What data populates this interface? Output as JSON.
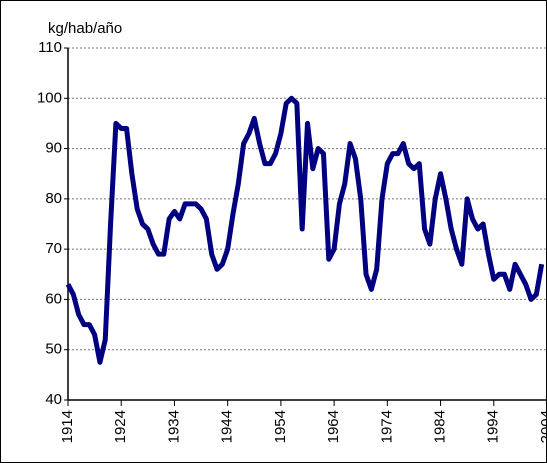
{
  "chart_data": {
    "type": "line",
    "y_label": "kg/hab/año",
    "x": [
      1914,
      1915,
      1916,
      1917,
      1918,
      1919,
      1920,
      1921,
      1922,
      1923,
      1924,
      1925,
      1926,
      1927,
      1928,
      1929,
      1930,
      1931,
      1932,
      1933,
      1934,
      1935,
      1936,
      1937,
      1938,
      1939,
      1940,
      1941,
      1942,
      1943,
      1944,
      1945,
      1946,
      1947,
      1948,
      1949,
      1950,
      1951,
      1952,
      1953,
      1954,
      1955,
      1956,
      1957,
      1958,
      1959,
      1960,
      1961,
      1962,
      1963,
      1964,
      1965,
      1966,
      1967,
      1968,
      1969,
      1970,
      1971,
      1972,
      1973,
      1974,
      1975,
      1976,
      1977,
      1978,
      1979,
      1980,
      1981,
      1982,
      1983,
      1984,
      1985,
      1986,
      1987,
      1988,
      1989,
      1990,
      1991,
      1992,
      1993,
      1994,
      1995,
      1996,
      1997,
      1998,
      1999,
      2000,
      2001,
      2002,
      2003
    ],
    "series": [
      {
        "color": "#000080",
        "values": [
          63,
          61,
          57,
          55,
          55,
          53,
          47.5,
          52,
          75,
          95,
          94,
          94,
          85,
          78,
          75,
          74,
          71,
          69,
          69,
          76,
          77.5,
          76,
          79,
          79,
          79,
          78,
          76,
          69,
          66,
          67,
          70,
          77,
          83,
          91,
          93,
          96,
          91,
          87,
          87,
          89,
          93,
          99,
          100,
          99,
          74,
          95,
          86,
          90,
          89,
          68,
          70,
          79,
          83,
          91,
          88,
          80,
          65,
          62,
          66,
          80,
          87,
          89,
          89,
          91,
          87,
          86,
          87,
          74,
          71,
          80,
          85,
          80,
          74,
          70,
          67,
          80,
          76,
          74,
          75,
          69,
          64,
          65,
          65,
          62,
          67,
          65,
          63,
          60,
          61,
          67
        ]
      }
    ],
    "xlim": [
      1914,
      2004
    ],
    "xticks": [
      1914,
      1924,
      1934,
      1944,
      1954,
      1964,
      1974,
      1984,
      1994,
      2004
    ],
    "ylim": [
      40,
      110
    ],
    "yticks": [
      40,
      50,
      60,
      70,
      80,
      90,
      100,
      110
    ],
    "grid": true
  }
}
